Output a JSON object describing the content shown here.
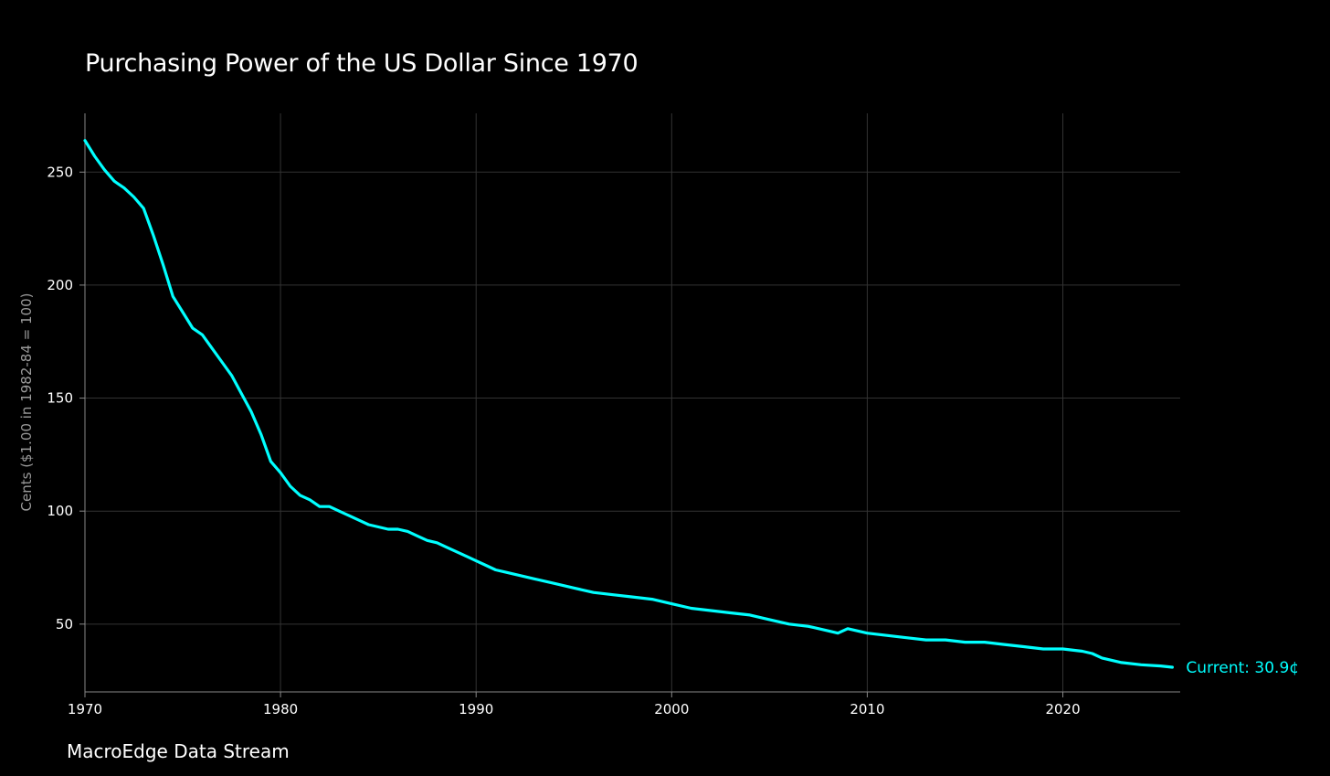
{
  "colors": {
    "background": "#000000",
    "series": "#00ffff",
    "grid": "#333333",
    "text": "#ffffff",
    "axis_title": "#9a9a9a"
  },
  "chart_data": {
    "type": "line",
    "title": "Purchasing Power of the US Dollar Since 1970",
    "xlabel": "",
    "ylabel": "Cents ($1.00 in 1982-84 = 100)",
    "xlim": [
      1970,
      2026
    ],
    "ylim": [
      20,
      276
    ],
    "x_ticks": [
      1970,
      1980,
      1990,
      2000,
      2010,
      2020
    ],
    "y_ticks": [
      50,
      100,
      150,
      200,
      250
    ],
    "grid": true,
    "series": [
      {
        "name": "Purchasing power (cents)",
        "x": [
          1970,
          1970.5,
          1971,
          1971.5,
          1972,
          1972.5,
          1973,
          1973.5,
          1974,
          1974.5,
          1975,
          1975.5,
          1976,
          1976.5,
          1977,
          1977.5,
          1978,
          1978.5,
          1979,
          1979.5,
          1980,
          1980.5,
          1981,
          1981.5,
          1982,
          1982.5,
          1983,
          1983.5,
          1984,
          1984.5,
          1985,
          1985.5,
          1986,
          1986.5,
          1987,
          1987.5,
          1988,
          1988.5,
          1989,
          1989.5,
          1990,
          1990.5,
          1991,
          1991.5,
          1992,
          1993,
          1994,
          1995,
          1996,
          1997,
          1998,
          1999,
          2000,
          2001,
          2002,
          2003,
          2004,
          2005,
          2006,
          2007,
          2008,
          2008.5,
          2009,
          2010,
          2011,
          2012,
          2013,
          2014,
          2015,
          2016,
          2017,
          2018,
          2019,
          2020,
          2021,
          2021.5,
          2022,
          2022.5,
          2023,
          2024,
          2025,
          2025.6
        ],
        "values": [
          264,
          257,
          251,
          246,
          243,
          239,
          234,
          222,
          209,
          195,
          188,
          181,
          178,
          172,
          166,
          160,
          152,
          144,
          134,
          122,
          117,
          111,
          107,
          105,
          102,
          102,
          100,
          98,
          96,
          94,
          93,
          92,
          92,
          91,
          89,
          87,
          86,
          84,
          82,
          80,
          78,
          76,
          74,
          73,
          72,
          70,
          68,
          66,
          64,
          63,
          62,
          61,
          59,
          57,
          56,
          55,
          54,
          52,
          50,
          49,
          47,
          46,
          48,
          46,
          45,
          44,
          43,
          43,
          42,
          42,
          41,
          40,
          39,
          39,
          38,
          37,
          35,
          34,
          33,
          32,
          31.5,
          30.9
        ]
      }
    ],
    "annotations": [
      {
        "text": "Current: 30.9¢",
        "x": 2025.6,
        "y": 30.9
      }
    ]
  },
  "footer": {
    "source": "MacroEdge Data Stream"
  }
}
